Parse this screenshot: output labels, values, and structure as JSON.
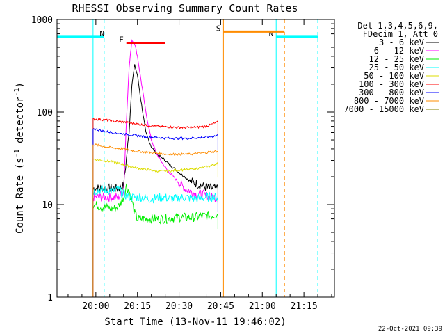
{
  "chart_data": {
    "type": "line",
    "title": "RHESSI Observing Summary Count Rates",
    "xlabel": "Start Time (13-Nov-11 19:46:02)",
    "ylabel_main": "Count Rate (s",
    "ylabel_sup1": "-1",
    "ylabel_mid": " detector",
    "ylabel_sup2": "-1",
    "ylabel_end": ")",
    "yscale": "log",
    "ylim": [
      1,
      1000
    ],
    "xlim_minutes": [
      0,
      100
    ],
    "x_ticks": [
      {
        "t": 14,
        "label": "20:00"
      },
      {
        "t": 29,
        "label": "20:15"
      },
      {
        "t": 44,
        "label": "20:30"
      },
      {
        "t": 59,
        "label": "20:45"
      },
      {
        "t": 74,
        "label": "21:00"
      },
      {
        "t": 89,
        "label": "21:15"
      }
    ],
    "y_ticks": [
      {
        "v": 1,
        "label": "1"
      },
      {
        "v": 10,
        "label": "10"
      },
      {
        "v": 100,
        "label": "100"
      },
      {
        "v": 1000,
        "label": "1000"
      }
    ],
    "legend_header": [
      "Det 1,3,4,5,6,9,",
      "FDecim 1, Att 0"
    ],
    "series": [
      {
        "name": "3 - 6 keV",
        "color": "#000000",
        "points": [
          [
            13,
            15
          ],
          [
            22,
            15
          ],
          [
            24,
            16
          ],
          [
            26,
            60
          ],
          [
            27,
            200
          ],
          [
            28,
            320
          ],
          [
            29,
            250
          ],
          [
            30,
            150
          ],
          [
            31,
            95
          ],
          [
            32,
            60
          ],
          [
            34,
            42
          ],
          [
            36,
            35
          ],
          [
            38,
            32
          ],
          [
            40,
            28
          ],
          [
            42,
            25
          ],
          [
            44,
            22
          ],
          [
            46,
            20
          ],
          [
            48,
            18
          ],
          [
            50,
            17
          ],
          [
            52,
            16
          ],
          [
            55,
            15
          ],
          [
            58,
            15
          ]
        ]
      },
      {
        "name": "6 - 12 keV",
        "color": "#ff00ff",
        "points": [
          [
            13,
            12
          ],
          [
            22,
            12
          ],
          [
            24,
            14
          ],
          [
            25,
            80
          ],
          [
            26,
            300
          ],
          [
            27,
            600
          ],
          [
            28,
            550
          ],
          [
            29,
            400
          ],
          [
            30,
            250
          ],
          [
            31,
            160
          ],
          [
            32,
            100
          ],
          [
            33,
            70
          ],
          [
            34,
            50
          ],
          [
            36,
            35
          ],
          [
            38,
            28
          ],
          [
            40,
            23
          ],
          [
            42,
            20
          ],
          [
            44,
            17
          ],
          [
            46,
            15
          ],
          [
            48,
            14
          ],
          [
            50,
            13
          ],
          [
            52,
            13
          ],
          [
            55,
            12
          ],
          [
            58,
            12
          ]
        ]
      },
      {
        "name": "12 - 25 keV",
        "color": "#00ee00",
        "points": [
          [
            13,
            10
          ],
          [
            16,
            9.5
          ],
          [
            20,
            9
          ],
          [
            22,
            9.5
          ],
          [
            24,
            12
          ],
          [
            25,
            16
          ],
          [
            26,
            14
          ],
          [
            27,
            11
          ],
          [
            28,
            8
          ],
          [
            29,
            7
          ],
          [
            32,
            7
          ],
          [
            36,
            7
          ],
          [
            40,
            7
          ],
          [
            44,
            7.3
          ],
          [
            48,
            7.2
          ],
          [
            52,
            7.5
          ],
          [
            55,
            7.6
          ],
          [
            58,
            7.8
          ]
        ]
      },
      {
        "name": "25 - 50 keV",
        "color": "#00ffff",
        "points": [
          [
            13,
            14
          ],
          [
            16,
            14.5
          ],
          [
            20,
            14
          ],
          [
            22,
            14.5
          ],
          [
            24,
            13
          ],
          [
            26,
            12
          ],
          [
            28,
            12
          ],
          [
            30,
            12
          ],
          [
            34,
            11.5
          ],
          [
            38,
            12
          ],
          [
            42,
            11.5
          ],
          [
            46,
            12
          ],
          [
            50,
            11.5
          ],
          [
            54,
            12
          ],
          [
            58,
            12
          ]
        ]
      },
      {
        "name": "50 - 100 keV",
        "color": "#dddd00",
        "points": [
          [
            13,
            31
          ],
          [
            16,
            30
          ],
          [
            20,
            29
          ],
          [
            24,
            27
          ],
          [
            28,
            25
          ],
          [
            32,
            24
          ],
          [
            36,
            23
          ],
          [
            40,
            23
          ],
          [
            44,
            23.5
          ],
          [
            48,
            24
          ],
          [
            52,
            25
          ],
          [
            55,
            26
          ],
          [
            58,
            28
          ]
        ]
      },
      {
        "name": "100 - 300 keV",
        "color": "#ff0000",
        "points": [
          [
            13,
            84
          ],
          [
            16,
            83
          ],
          [
            20,
            80
          ],
          [
            24,
            78
          ],
          [
            28,
            75
          ],
          [
            32,
            72
          ],
          [
            36,
            70
          ],
          [
            40,
            69
          ],
          [
            44,
            68
          ],
          [
            48,
            68
          ],
          [
            52,
            69
          ],
          [
            55,
            72
          ],
          [
            58,
            78
          ]
        ]
      },
      {
        "name": "300 - 800 keV",
        "color": "#0000ff",
        "points": [
          [
            13,
            66
          ],
          [
            16,
            63
          ],
          [
            20,
            60
          ],
          [
            24,
            58
          ],
          [
            28,
            56
          ],
          [
            32,
            54
          ],
          [
            36,
            53
          ],
          [
            40,
            52
          ],
          [
            44,
            52
          ],
          [
            48,
            52
          ],
          [
            52,
            53
          ],
          [
            55,
            54
          ],
          [
            58,
            56
          ]
        ]
      },
      {
        "name": "800 - 7000 keV",
        "color": "#ff8c00",
        "points": [
          [
            13,
            45
          ],
          [
            16,
            43
          ],
          [
            20,
            41
          ],
          [
            24,
            40
          ],
          [
            28,
            38
          ],
          [
            32,
            37
          ],
          [
            36,
            36
          ],
          [
            40,
            35
          ],
          [
            44,
            35
          ],
          [
            48,
            35
          ],
          [
            52,
            36
          ],
          [
            55,
            37
          ],
          [
            58,
            38
          ]
        ]
      },
      {
        "name": "7000 - 15000 keV",
        "color": "#808000",
        "points": []
      }
    ],
    "markers": [
      {
        "label": "N",
        "color": "#00ffff",
        "type": "bar",
        "t0": 0,
        "t1": 17,
        "y": 650
      },
      {
        "label": "N",
        "color": "#00ffff",
        "type": "bar",
        "t0": 79,
        "t1": 94,
        "y": 650
      },
      {
        "label": "F",
        "color": "#ff0000",
        "type": "bar",
        "t0": 25,
        "t1": 39,
        "y": 560
      },
      {
        "label": "S",
        "color": "#ff8c00",
        "type": "bar",
        "t0": 60,
        "t1": 82,
        "y": 740
      }
    ],
    "vlines": [
      {
        "t": 0,
        "color": "#00ffff",
        "style": "solid"
      },
      {
        "t": 13,
        "color": "#00ffff",
        "style": "solid"
      },
      {
        "t": 17,
        "color": "#00ffff",
        "style": "dashed"
      },
      {
        "t": 60,
        "color": "#ff8c00",
        "style": "solid"
      },
      {
        "t": 79,
        "color": "#00ffff",
        "style": "solid"
      },
      {
        "t": 82,
        "color": "#ff8c00",
        "style": "dashed"
      },
      {
        "t": 94,
        "color": "#00ffff",
        "style": "dashed"
      }
    ],
    "footer_date": "22-Oct-2021 09:39"
  }
}
